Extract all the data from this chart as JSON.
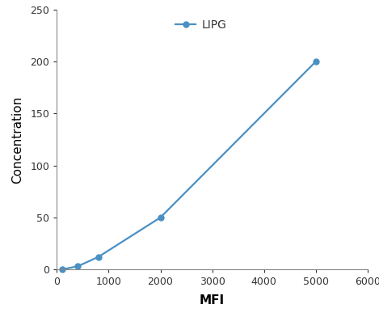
{
  "x": [
    100,
    400,
    800,
    2000,
    5000
  ],
  "y": [
    0,
    3,
    12,
    50,
    200
  ],
  "line_color": "#4a90c4",
  "marker": "o",
  "marker_size": 5,
  "line_width": 1.6,
  "label": "LIPG",
  "xlabel": "MFI",
  "ylabel": "Concentration",
  "xlim": [
    0,
    5500
  ],
  "ylim": [
    0,
    250
  ],
  "xticks": [
    0,
    1000,
    2000,
    3000,
    4000,
    5000,
    6000
  ],
  "yticks": [
    0,
    50,
    100,
    150,
    200,
    250
  ],
  "axis_label_fontsize": 11,
  "tick_fontsize": 9,
  "legend_fontsize": 10,
  "background_color": "#ffffff",
  "spine_color": "#888888"
}
